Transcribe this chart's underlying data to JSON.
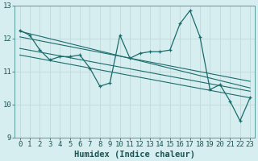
{
  "xlabel": "Humidex (Indice chaleur)",
  "bg_color": "#d7eef0",
  "grid_color": "#c0d8da",
  "line_color": "#1a6b6b",
  "xlim": [
    -0.5,
    23.5
  ],
  "ylim": [
    9,
    13
  ],
  "yticks": [
    9,
    10,
    11,
    12,
    13
  ],
  "xticks": [
    0,
    1,
    2,
    3,
    4,
    5,
    6,
    7,
    8,
    9,
    10,
    11,
    12,
    13,
    14,
    15,
    16,
    17,
    18,
    19,
    20,
    21,
    22,
    23
  ],
  "data_x": [
    0,
    1,
    2,
    3,
    4,
    5,
    6,
    7,
    8,
    9,
    10,
    11,
    12,
    13,
    14,
    15,
    16,
    17,
    18,
    19,
    20,
    21,
    22,
    23
  ],
  "data_y": [
    12.25,
    12.1,
    11.65,
    11.35,
    11.45,
    11.45,
    11.5,
    11.1,
    10.55,
    10.65,
    12.1,
    11.4,
    11.55,
    11.6,
    11.6,
    11.65,
    12.45,
    12.85,
    12.05,
    10.45,
    10.6,
    10.1,
    9.5,
    10.2
  ],
  "reg_lines": [
    {
      "x0": 0,
      "y0": 12.22,
      "x1": 23,
      "y1": 10.5
    },
    {
      "x0": 0,
      "y0": 12.05,
      "x1": 23,
      "y1": 10.7
    },
    {
      "x0": 0,
      "y0": 11.7,
      "x1": 23,
      "y1": 10.4
    },
    {
      "x0": 0,
      "y0": 11.5,
      "x1": 23,
      "y1": 10.2
    }
  ],
  "xlabel_fontsize": 7.5,
  "tick_fontsize": 6.5
}
